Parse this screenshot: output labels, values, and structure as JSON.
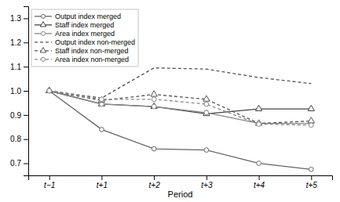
{
  "chart_data": {
    "type": "line",
    "categories": [
      "t−1",
      "t+1",
      "t+2",
      "t+3",
      "t+4",
      "t+5"
    ],
    "x_label": "Period",
    "series": [
      {
        "name": "Output index merged",
        "values": [
          1.0,
          0.84,
          0.76,
          0.755,
          0.7,
          0.675
        ],
        "color": "#666666",
        "marker": "circle",
        "line_style": "solid"
      },
      {
        "name": "Staff index merged",
        "values": [
          1.0,
          0.945,
          0.935,
          0.905,
          0.925,
          0.925
        ],
        "color": "#444444",
        "marker": "triangle",
        "line_style": "solid"
      },
      {
        "name": "Area index merged",
        "values": [
          1.0,
          0.945,
          0.935,
          0.91,
          0.865,
          0.865
        ],
        "color": "#888888",
        "marker": "circle",
        "line_style": "solid"
      },
      {
        "name": "Output index non-merged",
        "values": [
          1.0,
          0.97,
          1.095,
          1.09,
          1.055,
          1.03
        ],
        "color": "#555555",
        "marker": "none",
        "line_style": "dashed"
      },
      {
        "name": "Staff index non-merged",
        "values": [
          1.0,
          0.96,
          0.985,
          0.965,
          0.865,
          0.875
        ],
        "color": "#555555",
        "marker": "triangle",
        "line_style": "dashed"
      },
      {
        "name": "Area index non-merged",
        "values": [
          1.0,
          0.965,
          0.965,
          0.945,
          0.862,
          0.858
        ],
        "color": "#888888",
        "marker": "circle",
        "line_style": "dashed"
      }
    ],
    "ylim": [
      0.65,
      1.35
    ],
    "yticks": [
      0.7,
      0.8,
      0.9,
      {
        "value": 1.0,
        "label": "1.0"
      },
      1.1,
      1.2,
      1.3
    ],
    "grid": false,
    "legend": "upper left"
  }
}
